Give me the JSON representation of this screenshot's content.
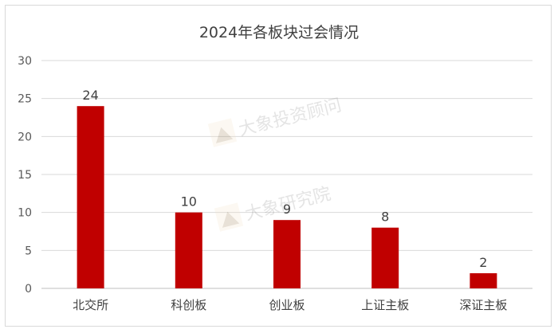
{
  "chart_data": {
    "type": "bar",
    "title": "2024年各板块过会情况",
    "categories": [
      "北交所",
      "科创板",
      "创业板",
      "上证主板",
      "深证主板"
    ],
    "values": [
      24,
      10,
      9,
      8,
      2
    ],
    "ylim": [
      0,
      30
    ],
    "yticks": [
      0,
      5,
      10,
      15,
      20,
      25,
      30
    ],
    "xlabel": "",
    "ylabel": "",
    "grid": true,
    "bar_color": "#c00000",
    "data_labels": true
  },
  "watermarks": [
    "大象投资顾问",
    "大象研究院"
  ]
}
